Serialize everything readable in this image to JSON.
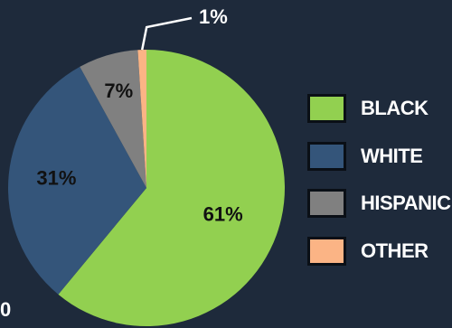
{
  "chart_data": {
    "type": "pie",
    "slices": [
      {
        "label": "BLACK",
        "value": 61,
        "display": "61%",
        "color": "#92d050"
      },
      {
        "label": "WHITE",
        "value": 31,
        "display": "31%",
        "color": "#34557a"
      },
      {
        "label": "HISPANIC",
        "value": 7,
        "display": "7%",
        "color": "#808080"
      },
      {
        "label": "OTHER",
        "value": 1,
        "display": "1%",
        "color": "#fbb485"
      }
    ],
    "legend_position": "right"
  },
  "edge_text": "0"
}
